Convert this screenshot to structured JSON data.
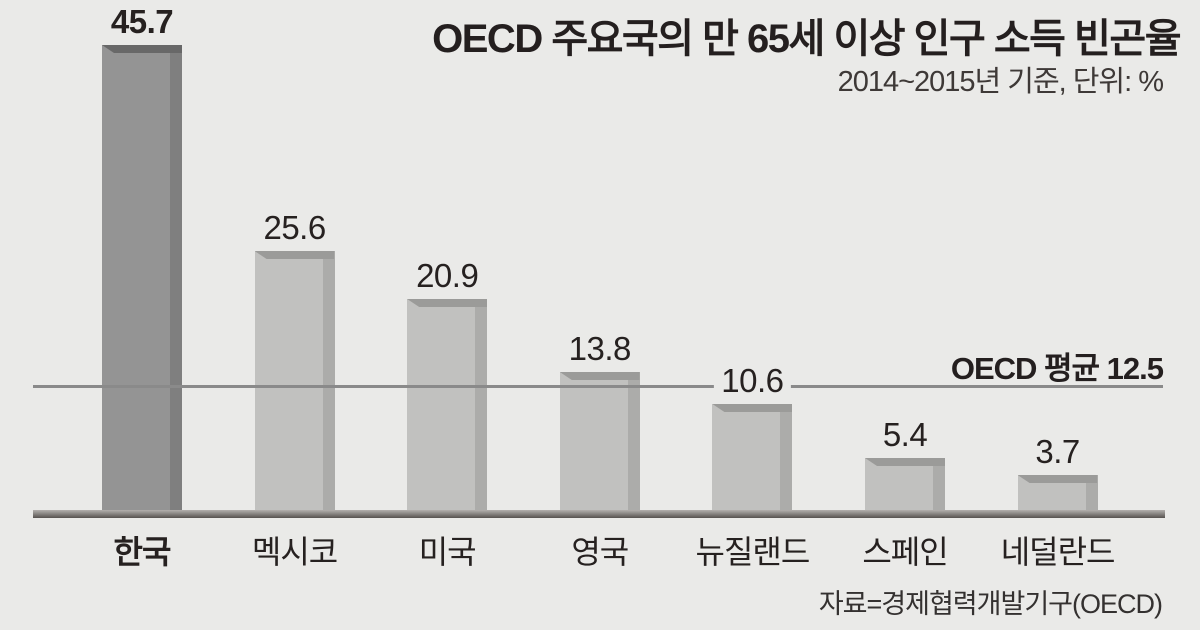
{
  "title": "OECD 주요국의 만 65세 이상 인구 소득 빈곤율",
  "subtitle": "2014~2015년 기준, 단위: %",
  "source": "자료=경제협력개발기구(OECD)",
  "average_label": "OECD 평균 12.5",
  "chart_data": {
    "type": "bar",
    "categories": [
      "한국",
      "멕시코",
      "미국",
      "영국",
      "뉴질랜드",
      "스페인",
      "네덜란드"
    ],
    "keys": [
      "korea",
      "mexico",
      "usa",
      "uk",
      "new-zealand",
      "spain",
      "netherlands"
    ],
    "values": [
      45.7,
      25.6,
      20.9,
      13.8,
      10.6,
      5.4,
      3.7
    ],
    "value_labels": [
      "45.7",
      "25.6",
      "20.9",
      "13.8",
      "10.6",
      "5.4",
      "3.7"
    ],
    "highlight_index": 0,
    "title": "OECD 주요국의 만 65세 이상 인구 소득 빈곤율",
    "subtitle": "2014~2015년 기준, 단위: %",
    "xlabel": "",
    "ylabel": "",
    "ylim": [
      0,
      50
    ],
    "grid": false,
    "legend": "none",
    "reference_line": {
      "label": "OECD 평균 12.5",
      "value": 12.5
    },
    "colors": {
      "background": "#eaeae8",
      "bar": "#c1c1bf",
      "bar_top": "#9b9b99",
      "bar_side": "#acacaa",
      "bar_highlight": "#949494",
      "bar_highlight_top": "#686868",
      "bar_highlight_side": "#7f7f7f",
      "reference_line": "#8a8a8a",
      "text": "#262120"
    }
  }
}
